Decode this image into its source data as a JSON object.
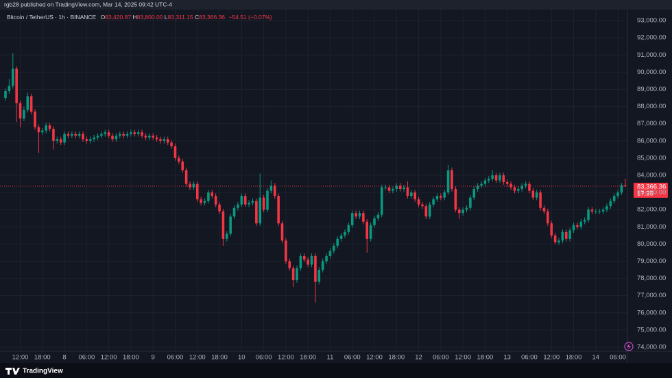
{
  "header": {
    "byline": "rgb28 published on TradingView.com, Mar 14, 2025 09:42 UTC-4"
  },
  "footer": {
    "brand": "TradingView"
  },
  "chart_data": {
    "type": "candlestick",
    "symbol": "Bitcoin / TetherUS · 1h · BINANCE",
    "ohlc_prefixes": {
      "open": "O",
      "high": "H",
      "low": "L",
      "close": "C"
    },
    "ohlc_labels": {
      "open": "83,420.87",
      "high": "83,800.00",
      "low": "83,311.15",
      "close": "83,366.36"
    },
    "change_label": "−54.51 (−0.07%)",
    "last_price_label": "83,366.36",
    "countdown": "17:35",
    "up_color": "#089981",
    "down_color": "#f23645",
    "grid": true,
    "ylim": [
      73760,
      93640
    ],
    "yticks": [
      {
        "value": 74000,
        "label": "74,000.00"
      },
      {
        "value": 75000,
        "label": "75,000.00"
      },
      {
        "value": 76000,
        "label": "76,000.00"
      },
      {
        "value": 77000,
        "label": "77,000.00"
      },
      {
        "value": 78000,
        "label": "78,000.00"
      },
      {
        "value": 79000,
        "label": "79,000.00"
      },
      {
        "value": 80000,
        "label": "80,000.00"
      },
      {
        "value": 81000,
        "label": "81,000.00"
      },
      {
        "value": 82000,
        "label": "82,000.00"
      },
      {
        "value": 83000,
        "label": "83,000.00"
      },
      {
        "value": 84000,
        "label": "84,000.00"
      },
      {
        "value": 85000,
        "label": "85,000.00"
      },
      {
        "value": 86000,
        "label": "86,000.00"
      },
      {
        "value": 87000,
        "label": "87,000.00"
      },
      {
        "value": 88000,
        "label": "88,000.00"
      },
      {
        "value": 89000,
        "label": "89,000.00"
      },
      {
        "value": 90000,
        "label": "90,000.00"
      },
      {
        "value": 91000,
        "label": "91,000.00"
      },
      {
        "value": 92000,
        "label": "92,000.00"
      },
      {
        "value": 93000,
        "label": "93,000.00"
      }
    ],
    "categories": [
      null,
      null,
      null,
      null,
      "12:00",
      null,
      null,
      null,
      null,
      null,
      "18:00",
      null,
      null,
      null,
      null,
      null,
      "8",
      null,
      null,
      null,
      null,
      null,
      "06:00",
      null,
      null,
      null,
      null,
      null,
      "12:00",
      null,
      null,
      null,
      null,
      null,
      "18:00",
      null,
      null,
      null,
      null,
      null,
      "9",
      null,
      null,
      null,
      null,
      null,
      "06:00",
      null,
      null,
      null,
      null,
      null,
      "12:00",
      null,
      null,
      null,
      null,
      null,
      "18:00",
      null,
      null,
      null,
      null,
      null,
      "10",
      null,
      null,
      null,
      null,
      null,
      "06:00",
      null,
      null,
      null,
      null,
      null,
      "12:00",
      null,
      null,
      null,
      null,
      null,
      "18:00",
      null,
      null,
      null,
      null,
      null,
      "11",
      null,
      null,
      null,
      null,
      null,
      "06:00",
      null,
      null,
      null,
      null,
      null,
      "12:00",
      null,
      null,
      null,
      null,
      null,
      "18:00",
      null,
      null,
      null,
      null,
      null,
      "12",
      null,
      null,
      null,
      null,
      null,
      "06:00",
      null,
      null,
      null,
      null,
      null,
      "12:00",
      null,
      null,
      null,
      null,
      null,
      "18:00",
      null,
      null,
      null,
      null,
      null,
      "13",
      null,
      null,
      null,
      null,
      null,
      "06:00",
      null,
      null,
      null,
      null,
      null,
      "12:00",
      null,
      null,
      null,
      null,
      null,
      "18:00",
      null,
      null,
      null,
      null,
      null,
      "14",
      null,
      null,
      null,
      null,
      null,
      "06:00",
      null,
      null
    ],
    "open": [
      88500,
      88900,
      89200,
      90200,
      88200,
      87300,
      87800,
      88600,
      87700,
      86800,
      86500,
      86600,
      86900,
      86700,
      86000,
      86100,
      85900,
      86400,
      86300,
      86400,
      86300,
      86400,
      86100,
      86000,
      86100,
      86200,
      86300,
      86400,
      86500,
      86300,
      86100,
      86300,
      86400,
      86300,
      86400,
      86500,
      86400,
      86500,
      86300,
      86200,
      86300,
      86200,
      86100,
      86000,
      86100,
      85900,
      85700,
      85000,
      84800,
      84300,
      83500,
      83300,
      83500,
      82600,
      82400,
      82500,
      83000,
      82800,
      82300,
      81900,
      80300,
      80600,
      81600,
      82100,
      82300,
      82800,
      82300,
      82400,
      82500,
      81200,
      82700,
      82000,
      83100,
      83400,
      82800,
      81200,
      80200,
      79000,
      78600,
      77900,
      78600,
      79300,
      79100,
      78800,
      79300,
      77800,
      78500,
      79000,
      79300,
      79600,
      79900,
      80300,
      80500,
      80700,
      81100,
      81800,
      81600,
      81800,
      81300,
      80300,
      81100,
      81500,
      81700,
      83300,
      83300,
      83100,
      83200,
      83400,
      83200,
      83300,
      82800,
      83000,
      82600,
      82300,
      82200,
      81600,
      82300,
      82600,
      82800,
      82700,
      83000,
      84300,
      83200,
      82000,
      81800,
      82000,
      82100,
      82700,
      83200,
      83400,
      83500,
      83700,
      83800,
      84000,
      83700,
      84000,
      83600,
      83500,
      83300,
      83100,
      83200,
      83400,
      83500,
      83100,
      82700,
      83000,
      82100,
      81900,
      81200,
      80500,
      80100,
      80200,
      80700,
      80300,
      80800,
      81100,
      81000,
      81300,
      81400,
      82000,
      81900,
      81900,
      81900,
      82000,
      82200,
      82500,
      82800,
      83000,
      83420.87
    ],
    "high": [
      89050,
      89600,
      91100,
      90350,
      88350,
      88000,
      88800,
      88750,
      87850,
      86950,
      86750,
      87050,
      87050,
      86850,
      86250,
      86250,
      86550,
      86550,
      86550,
      86550,
      86550,
      86550,
      86250,
      86250,
      86350,
      86450,
      86550,
      86650,
      86650,
      86450,
      86450,
      86550,
      86550,
      86550,
      86650,
      86650,
      86650,
      86650,
      86450,
      86450,
      86450,
      86350,
      86250,
      86250,
      86250,
      86050,
      85850,
      85150,
      84950,
      84450,
      83650,
      83650,
      83650,
      82750,
      82650,
      83150,
      83150,
      82950,
      82450,
      82050,
      80750,
      81750,
      82250,
      82450,
      82950,
      82950,
      82550,
      82650,
      82650,
      84100,
      82850,
      83250,
      83700,
      83550,
      82950,
      81350,
      80350,
      79150,
      78750,
      78750,
      79450,
      79450,
      79250,
      79450,
      79450,
      78650,
      79150,
      79450,
      79750,
      80050,
      80450,
      80650,
      80850,
      81250,
      81950,
      81950,
      81950,
      81950,
      81450,
      81250,
      81650,
      81850,
      83450,
      83450,
      83450,
      83350,
      83550,
      83550,
      83450,
      83650,
      83150,
      83150,
      82750,
      82450,
      82350,
      82450,
      82750,
      82950,
      82950,
      83150,
      84600,
      84450,
      83350,
      82150,
      82150,
      82250,
      82850,
      83350,
      83550,
      83650,
      83850,
      83950,
      84300,
      84150,
      84150,
      84150,
      83750,
      83650,
      83450,
      83350,
      83550,
      83650,
      83650,
      83250,
      83150,
      83150,
      82250,
      82050,
      81350,
      80650,
      80350,
      80850,
      80850,
      80950,
      81250,
      81250,
      81450,
      81550,
      82150,
      82150,
      82050,
      82050,
      82150,
      82350,
      82650,
      82950,
      83150,
      83550,
      83800
    ],
    "low": [
      88350,
      88750,
      89050,
      87100,
      86800,
      87150,
      87650,
      87550,
      86650,
      85300,
      86350,
      86450,
      86550,
      85500,
      85850,
      85750,
      85750,
      86150,
      86150,
      86150,
      86150,
      85950,
      85850,
      85850,
      85950,
      86050,
      86150,
      86250,
      86150,
      85950,
      85950,
      86150,
      86150,
      86150,
      86250,
      86250,
      86250,
      86150,
      86050,
      86050,
      86050,
      85950,
      85850,
      85850,
      85750,
      85550,
      84850,
      84650,
      84150,
      83350,
      83150,
      83150,
      82450,
      82250,
      82250,
      82350,
      82650,
      82150,
      81750,
      79900,
      80150,
      80450,
      81450,
      81950,
      82150,
      82150,
      82150,
      82250,
      81050,
      81050,
      81850,
      81850,
      82950,
      82650,
      81050,
      80050,
      78850,
      78450,
      77500,
      77750,
      78450,
      78950,
      78650,
      78650,
      76600,
      77650,
      78350,
      78850,
      79150,
      79450,
      79750,
      80150,
      80350,
      80550,
      80950,
      81450,
      81450,
      81150,
      79500,
      80150,
      80950,
      81350,
      81550,
      83150,
      82950,
      82950,
      83050,
      83050,
      83050,
      82650,
      82650,
      82450,
      82150,
      82050,
      81450,
      81450,
      82150,
      82450,
      82550,
      82550,
      82850,
      83050,
      81850,
      81450,
      81650,
      81850,
      81950,
      82550,
      83050,
      83250,
      83350,
      83550,
      83650,
      83550,
      83550,
      83450,
      83350,
      83150,
      82950,
      82950,
      83050,
      83250,
      82950,
      82550,
      82550,
      81950,
      81750,
      81050,
      80350,
      80000,
      79950,
      80050,
      80150,
      80150,
      80650,
      80850,
      80850,
      81150,
      81250,
      81750,
      81750,
      81750,
      81750,
      81850,
      82050,
      82350,
      82650,
      82850,
      83311.15
    ],
    "close": [
      88900,
      89200,
      90200,
      88200,
      87300,
      87800,
      88600,
      87700,
      86800,
      86500,
      86600,
      86900,
      86700,
      86000,
      86100,
      85900,
      86400,
      86300,
      86400,
      86300,
      86400,
      86100,
      86000,
      86100,
      86200,
      86300,
      86400,
      86500,
      86300,
      86100,
      86300,
      86400,
      86300,
      86400,
      86500,
      86400,
      86500,
      86300,
      86200,
      86300,
      86200,
      86100,
      86000,
      86100,
      85900,
      85700,
      85000,
      84800,
      84300,
      83500,
      83300,
      83500,
      82600,
      82400,
      82500,
      83000,
      82800,
      82300,
      81900,
      80300,
      80600,
      81600,
      82100,
      82300,
      82800,
      82300,
      82400,
      82500,
      81200,
      82700,
      82000,
      83100,
      83400,
      82800,
      81200,
      80200,
      79000,
      78600,
      77900,
      78600,
      79300,
      79100,
      78800,
      79300,
      77800,
      78500,
      79000,
      79300,
      79600,
      79900,
      80300,
      80500,
      80700,
      81100,
      81800,
      81600,
      81800,
      81300,
      80300,
      81100,
      81500,
      81700,
      83300,
      83300,
      83100,
      83200,
      83400,
      83200,
      83300,
      82800,
      83000,
      82600,
      82300,
      82200,
      81600,
      82300,
      82600,
      82800,
      82700,
      83000,
      84300,
      83200,
      82000,
      81800,
      82000,
      82100,
      82700,
      83200,
      83400,
      83500,
      83700,
      83800,
      84000,
      83700,
      84000,
      83600,
      83500,
      83300,
      83100,
      83200,
      83400,
      83500,
      83100,
      82700,
      83000,
      82100,
      81900,
      81200,
      80500,
      80100,
      80200,
      80700,
      80300,
      80800,
      81100,
      81000,
      81300,
      81400,
      82000,
      81900,
      81900,
      81900,
      82000,
      82200,
      82500,
      82800,
      83000,
      83420.87,
      83366.36
    ]
  }
}
